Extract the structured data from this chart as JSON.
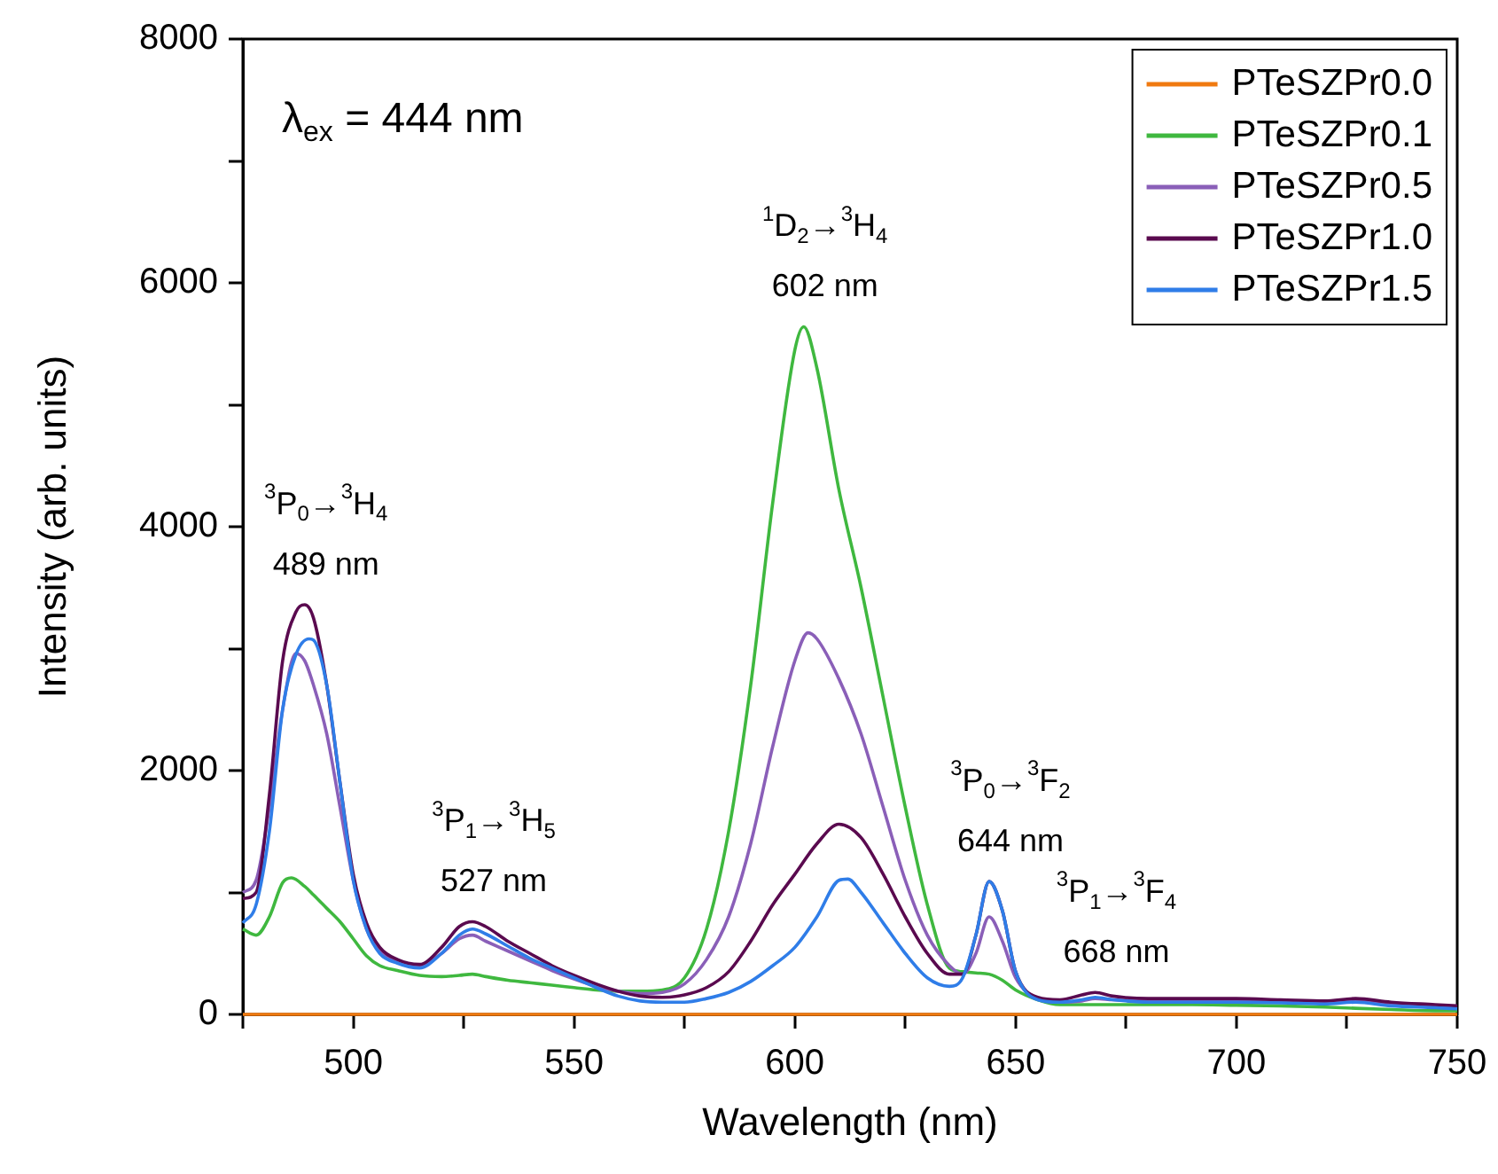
{
  "chart_data": {
    "type": "line",
    "xlabel": "Wavelength (nm)",
    "ylabel": "Intensity (arb. units)",
    "xlim": [
      475,
      750
    ],
    "xticks": [
      {
        "value": 475,
        "label": null
      },
      500,
      {
        "value": 525,
        "label": null
      },
      550,
      {
        "value": 575,
        "label": null
      },
      600,
      {
        "value": 625,
        "label": null
      },
      650,
      {
        "value": 675,
        "label": null
      },
      700,
      {
        "value": 725,
        "label": null
      },
      750
    ],
    "ylim": [
      0,
      8000
    ],
    "yticks": [
      0,
      {
        "value": 1000,
        "label": null
      },
      2000,
      {
        "value": 3000,
        "label": null
      },
      4000,
      {
        "value": 5000,
        "label": null
      },
      6000,
      {
        "value": 7000,
        "label": null
      },
      8000
    ],
    "grid": false,
    "legend": "top right",
    "marker": "none",
    "line_style": "solid",
    "annotations": [
      "λ$_{ex}$ = 444 nm",
      {
        "text": "$^{3}$P$_{0}$→$^{3}$H$_{4}$\n489 nm",
        "x": 489,
        "y": 3360
      },
      {
        "text": "$^{3}$P$_{1}$→$^{3}$H$_{5}$\n527 nm",
        "x": 527,
        "y": 760
      },
      {
        "text": "$^{1}$D$_{2}$→$^{3}$H$_{4}$\n602 nm",
        "x": 602,
        "y": 5640
      },
      {
        "text": "$^{3}$P$_{0}$→$^{3}$F$_{2}$\n644 nm",
        "x": 644,
        "y": 1090
      },
      {
        "text": "$^{3}$P$_{1}$→$^{3}$F$_{4}$\n668 nm",
        "x": 668,
        "y": 180
      }
    ],
    "series": [
      {
        "name": "PTeSZPr0.0",
        "color": "#f07a10",
        "x": [
          475,
          750
        ],
        "values": [
          0,
          0
        ]
      },
      {
        "name": "PTeSZPr0.1",
        "color": "#3fb83f",
        "x": [
          475,
          478,
          481,
          484,
          486,
          489,
          491,
          494,
          497,
          500,
          503,
          506,
          510,
          515,
          520,
          524,
          527,
          530,
          535,
          540,
          545,
          550,
          555,
          560,
          565,
          570,
          575,
          580,
          585,
          590,
          595,
          600,
          602,
          605,
          610,
          615,
          620,
          625,
          630,
          635,
          638,
          641,
          644,
          647,
          650,
          655,
          660,
          665,
          668,
          672,
          680,
          690,
          700,
          710,
          720,
          727,
          735,
          745,
          750
        ],
        "values": [
          700,
          650,
          800,
          1080,
          1120,
          1050,
          980,
          870,
          760,
          620,
          480,
          400,
          360,
          320,
          310,
          320,
          330,
          310,
          280,
          260,
          240,
          220,
          200,
          190,
          190,
          200,
          300,
          700,
          1500,
          2700,
          4200,
          5450,
          5640,
          5300,
          4300,
          3500,
          2600,
          1700,
          900,
          380,
          350,
          340,
          330,
          280,
          200,
          120,
          80,
          80,
          80,
          80,
          80,
          80,
          75,
          70,
          60,
          50,
          40,
          30,
          30
        ]
      },
      {
        "name": "PTeSZPr0.5",
        "color": "#8a5fb8",
        "x": [
          475,
          478,
          481,
          484,
          487,
          489,
          491,
          494,
          497,
          500,
          503,
          506,
          510,
          515,
          520,
          524,
          527,
          530,
          535,
          540,
          545,
          550,
          555,
          560,
          565,
          570,
          575,
          580,
          585,
          590,
          595,
          600,
          603,
          605,
          610,
          615,
          620,
          625,
          630,
          635,
          638,
          641,
          644,
          647,
          650,
          655,
          660,
          665,
          668,
          672,
          680,
          690,
          700,
          710,
          720,
          727,
          735,
          745,
          750
        ],
        "values": [
          1000,
          1100,
          1700,
          2500,
          2960,
          2900,
          2700,
          2300,
          1700,
          1100,
          700,
          520,
          440,
          400,
          500,
          620,
          650,
          600,
          520,
          440,
          360,
          290,
          230,
          190,
          170,
          180,
          250,
          450,
          800,
          1400,
          2200,
          2900,
          3130,
          3080,
          2750,
          2300,
          1700,
          1100,
          650,
          400,
          330,
          500,
          800,
          600,
          300,
          130,
          100,
          110,
          130,
          120,
          110,
          115,
          115,
          110,
          100,
          110,
          90,
          70,
          60
        ]
      },
      {
        "name": "PTeSZPr1.0",
        "color": "#5a0a4f",
        "x": [
          475,
          478,
          481,
          484,
          487,
          489,
          491,
          494,
          497,
          500,
          503,
          506,
          510,
          515,
          520,
          524,
          527,
          530,
          535,
          540,
          545,
          550,
          555,
          560,
          565,
          570,
          575,
          580,
          585,
          590,
          595,
          600,
          605,
          610,
          615,
          620,
          625,
          630,
          635,
          638,
          641,
          644,
          647,
          650,
          655,
          660,
          665,
          668,
          672,
          680,
          690,
          700,
          710,
          720,
          727,
          735,
          745,
          750
        ],
        "values": [
          950,
          1000,
          1800,
          2900,
          3300,
          3360,
          3250,
          2700,
          1900,
          1150,
          750,
          550,
          450,
          410,
          550,
          720,
          760,
          720,
          600,
          500,
          400,
          320,
          250,
          190,
          150,
          140,
          160,
          220,
          350,
          600,
          900,
          1150,
          1400,
          1560,
          1450,
          1150,
          800,
          500,
          330,
          330,
          650,
          1090,
          850,
          350,
          140,
          120,
          160,
          180,
          150,
          130,
          130,
          130,
          120,
          110,
          130,
          100,
          80,
          70
        ]
      },
      {
        "name": "PTeSZPr1.5",
        "color": "#2f7de8",
        "x": [
          475,
          478,
          481,
          484,
          487,
          490,
          491,
          494,
          497,
          500,
          503,
          506,
          510,
          515,
          520,
          524,
          527,
          530,
          535,
          540,
          545,
          550,
          555,
          560,
          565,
          570,
          575,
          580,
          585,
          590,
          595,
          600,
          605,
          610,
          612,
          615,
          620,
          625,
          630,
          635,
          638,
          641,
          644,
          647,
          650,
          655,
          660,
          665,
          668,
          672,
          680,
          690,
          700,
          710,
          720,
          727,
          735,
          745,
          750
        ],
        "values": [
          750,
          900,
          1500,
          2500,
          2950,
          3080,
          3070,
          2700,
          1900,
          1100,
          700,
          500,
          420,
          380,
          500,
          650,
          700,
          660,
          560,
          460,
          380,
          300,
          220,
          150,
          110,
          100,
          100,
          130,
          180,
          270,
          400,
          550,
          800,
          1100,
          1110,
          1000,
          750,
          500,
          300,
          230,
          300,
          650,
          1090,
          850,
          350,
          120,
          100,
          120,
          140,
          120,
          100,
          100,
          100,
          95,
          85,
          100,
          70,
          55,
          45
        ]
      }
    ]
  }
}
